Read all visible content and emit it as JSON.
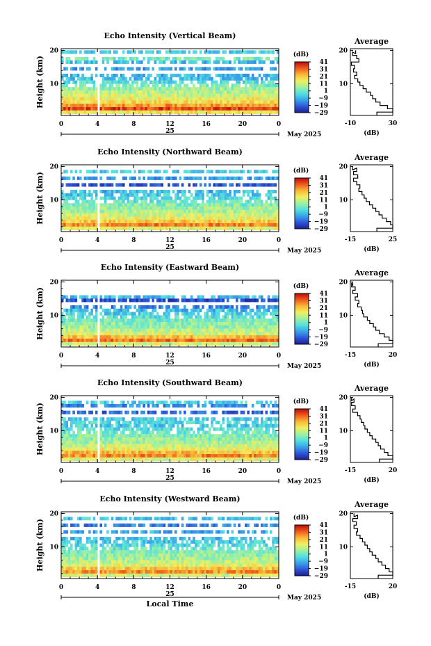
{
  "figure": {
    "colorbar_unit": "(dB)",
    "colorbar_ticks": [
      "41",
      "31",
      "21",
      "11",
      "1",
      "−9",
      "−19",
      "−29"
    ],
    "date_label": "25",
    "month_label": "May 2025",
    "xlabel": "Local Time",
    "avg_title": "Average",
    "avg_xlabel": "(dB)",
    "ylabel": "Height (km)",
    "x_ticks": [
      "0",
      "4",
      "8",
      "12",
      "16",
      "20",
      "0"
    ],
    "y_ticks": [
      "20",
      "10"
    ],
    "colormap": [
      "#1e1e96",
      "#2e56d8",
      "#3aa2e8",
      "#54e0e0",
      "#9ef0a0",
      "#f0f060",
      "#f8b838",
      "#f05a1e",
      "#b80c0c"
    ]
  },
  "chart_data": [
    {
      "type": "heatmap",
      "beam": "vertical",
      "title": "Echo Intensity (Vertical Beam)",
      "xlabel": "",
      "ylabel": "Height (km)",
      "xlim": [
        0,
        24
      ],
      "ylim": [
        0.5,
        20.5
      ],
      "clim": [
        -29,
        41
      ],
      "profile_rows": [
        {
          "h": 19.5,
          "db": -5
        },
        {
          "h": 17.5,
          "db": 2
        },
        {
          "h": 16.5,
          "db": -8
        },
        {
          "h": 14.5,
          "db": -12
        },
        {
          "h": 12.5,
          "db": -9
        },
        {
          "h": 11.5,
          "db": -7
        },
        {
          "h": 10.5,
          "db": -3
        },
        {
          "h": 9.5,
          "db": 2
        },
        {
          "h": 8.5,
          "db": 6
        },
        {
          "h": 7.5,
          "db": 9
        },
        {
          "h": 6.5,
          "db": 11
        },
        {
          "h": 5.5,
          "db": 15
        },
        {
          "h": 4.5,
          "db": 18
        },
        {
          "h": 3.5,
          "db": 26
        },
        {
          "h": 2.5,
          "db": 34
        },
        {
          "h": 1.5,
          "db": 16
        }
      ],
      "average_profile": {
        "xlim": [
          -10,
          30
        ],
        "x_ticks": [
          "-10",
          "30"
        ],
        "points": [
          [
            -5,
            19.5
          ],
          [
            -8,
            19
          ],
          [
            -4,
            18
          ],
          [
            -2,
            17
          ],
          [
            -9,
            16
          ],
          [
            -6,
            15
          ],
          [
            -7,
            14
          ],
          [
            -4,
            13
          ],
          [
            -6,
            12
          ],
          [
            -3,
            11
          ],
          [
            -1,
            10
          ],
          [
            2,
            9
          ],
          [
            5,
            8
          ],
          [
            9,
            7
          ],
          [
            11,
            6
          ],
          [
            14,
            5
          ],
          [
            18,
            4
          ],
          [
            25,
            3
          ],
          [
            30,
            2
          ],
          [
            15,
            1
          ]
        ]
      }
    },
    {
      "type": "heatmap",
      "beam": "northward",
      "title": "Echo Intensity (Northward Beam)",
      "xlabel": "",
      "ylabel": "Height (km)",
      "xlim": [
        0,
        24
      ],
      "ylim": [
        0.5,
        20.5
      ],
      "clim": [
        -29,
        41
      ],
      "profile_rows": [
        {
          "h": 18.5,
          "db": -5
        },
        {
          "h": 16.5,
          "db": -12
        },
        {
          "h": 14.5,
          "db": -20
        },
        {
          "h": 12.5,
          "db": -8
        },
        {
          "h": 11.5,
          "db": -6
        },
        {
          "h": 10.5,
          "db": -4
        },
        {
          "h": 9.5,
          "db": 0
        },
        {
          "h": 8.5,
          "db": 3
        },
        {
          "h": 7.5,
          "db": 6
        },
        {
          "h": 6.5,
          "db": 8
        },
        {
          "h": 5.5,
          "db": 11
        },
        {
          "h": 4.5,
          "db": 14
        },
        {
          "h": 3.5,
          "db": 20
        },
        {
          "h": 2.5,
          "db": 28
        },
        {
          "h": 1.5,
          "db": 14
        }
      ],
      "average_profile": {
        "xlim": [
          -15,
          25
        ],
        "x_ticks": [
          "-15",
          "25"
        ],
        "points": [
          [
            -13,
            19.5
          ],
          [
            -9,
            19
          ],
          [
            -12,
            18
          ],
          [
            -8,
            17
          ],
          [
            -12,
            16
          ],
          [
            -9,
            15
          ],
          [
            -6,
            14
          ],
          [
            -7,
            13
          ],
          [
            -4,
            12
          ],
          [
            -2,
            11
          ],
          [
            0,
            10
          ],
          [
            3,
            9
          ],
          [
            6,
            8
          ],
          [
            9,
            7
          ],
          [
            12,
            6
          ],
          [
            15,
            5
          ],
          [
            19,
            4
          ],
          [
            23,
            3
          ],
          [
            25,
            2
          ],
          [
            10,
            1
          ]
        ]
      }
    },
    {
      "type": "heatmap",
      "beam": "eastward",
      "title": "Echo Intensity (Eastward Beam)",
      "xlabel": "",
      "ylabel": "Height (km)",
      "xlim": [
        0,
        24
      ],
      "ylim": [
        0.5,
        20.5
      ],
      "clim": [
        -29,
        41
      ],
      "profile_rows": [
        {
          "h": 15.5,
          "db": -8
        },
        {
          "h": 14.5,
          "db": -22
        },
        {
          "h": 12.5,
          "db": -15
        },
        {
          "h": 11.5,
          "db": -8
        },
        {
          "h": 10.5,
          "db": -5
        },
        {
          "h": 9.5,
          "db": -2
        },
        {
          "h": 8.5,
          "db": 2
        },
        {
          "h": 7.5,
          "db": 4
        },
        {
          "h": 6.5,
          "db": 6
        },
        {
          "h": 5.5,
          "db": 9
        },
        {
          "h": 4.5,
          "db": 12
        },
        {
          "h": 3.5,
          "db": 22
        },
        {
          "h": 2.5,
          "db": 30
        },
        {
          "h": 1.5,
          "db": 12
        }
      ],
      "average_profile": {
        "xlim": [
          -15,
          20
        ],
        "x_ticks": [
          "-15",
          "20"
        ],
        "points": [
          [
            -13,
            19.5
          ],
          [
            -14,
            19
          ],
          [
            -11,
            18
          ],
          [
            -13,
            17
          ],
          [
            -9,
            16
          ],
          [
            -11,
            15
          ],
          [
            -8,
            14
          ],
          [
            -9,
            13
          ],
          [
            -6,
            12
          ],
          [
            -5,
            11
          ],
          [
            -4,
            10
          ],
          [
            -1,
            9
          ],
          [
            1,
            8
          ],
          [
            4,
            7
          ],
          [
            6,
            6
          ],
          [
            9,
            5
          ],
          [
            13,
            4
          ],
          [
            17,
            3
          ],
          [
            20,
            2
          ],
          [
            8,
            1
          ]
        ]
      }
    },
    {
      "type": "heatmap",
      "beam": "southward",
      "title": "Echo Intensity (Southward Beam)",
      "xlabel": "",
      "ylabel": "Height (km)",
      "xlim": [
        0,
        24
      ],
      "ylim": [
        0.5,
        20.5
      ],
      "clim": [
        -29,
        41
      ],
      "profile_rows": [
        {
          "h": 18.5,
          "db": -5
        },
        {
          "h": 17.5,
          "db": -14
        },
        {
          "h": 15.5,
          "db": -18
        },
        {
          "h": 13.5,
          "db": -6
        },
        {
          "h": 12.5,
          "db": -4
        },
        {
          "h": 11.5,
          "db": -6
        },
        {
          "h": 10.5,
          "db": -2
        },
        {
          "h": 9.5,
          "db": 1
        },
        {
          "h": 8.5,
          "db": 3
        },
        {
          "h": 7.5,
          "db": 5
        },
        {
          "h": 6.5,
          "db": 8
        },
        {
          "h": 5.5,
          "db": 11
        },
        {
          "h": 4.5,
          "db": 14
        },
        {
          "h": 3.5,
          "db": 22
        },
        {
          "h": 2.5,
          "db": 28
        },
        {
          "h": 1.5,
          "db": 13
        }
      ],
      "average_profile": {
        "xlim": [
          -15,
          20
        ],
        "x_ticks": [
          "-15",
          "20"
        ],
        "points": [
          [
            -14,
            19.5
          ],
          [
            -12,
            19
          ],
          [
            -14,
            18
          ],
          [
            -11,
            17
          ],
          [
            -13,
            16
          ],
          [
            -9,
            15
          ],
          [
            -7,
            14
          ],
          [
            -6,
            13
          ],
          [
            -4,
            12
          ],
          [
            -3,
            11
          ],
          [
            -1,
            10
          ],
          [
            1,
            9
          ],
          [
            3,
            8
          ],
          [
            6,
            7
          ],
          [
            8,
            6
          ],
          [
            10,
            5
          ],
          [
            13,
            4
          ],
          [
            16,
            3
          ],
          [
            20,
            2
          ],
          [
            9,
            1
          ]
        ]
      }
    },
    {
      "type": "heatmap",
      "beam": "westward",
      "title": "Echo Intensity (Westward Beam)",
      "xlabel": "Local Time",
      "ylabel": "Height (km)",
      "xlim": [
        0,
        24
      ],
      "ylim": [
        0.5,
        20.5
      ],
      "clim": [
        -29,
        41
      ],
      "profile_rows": [
        {
          "h": 18.5,
          "db": -6
        },
        {
          "h": 16.5,
          "db": -15
        },
        {
          "h": 14.5,
          "db": -10
        },
        {
          "h": 12.5,
          "db": -8
        },
        {
          "h": 11.5,
          "db": -6
        },
        {
          "h": 10.5,
          "db": -3
        },
        {
          "h": 9.5,
          "db": 0
        },
        {
          "h": 8.5,
          "db": 3
        },
        {
          "h": 7.5,
          "db": 5
        },
        {
          "h": 6.5,
          "db": 7
        },
        {
          "h": 5.5,
          "db": 10
        },
        {
          "h": 4.5,
          "db": 13
        },
        {
          "h": 3.5,
          "db": 21
        },
        {
          "h": 2.5,
          "db": 27
        },
        {
          "h": 1.5,
          "db": 12
        }
      ],
      "average_profile": {
        "xlim": [
          -15,
          20
        ],
        "x_ticks": [
          "-15",
          "20"
        ],
        "points": [
          [
            -12,
            19.5
          ],
          [
            -9,
            19
          ],
          [
            -13,
            18
          ],
          [
            -10,
            17
          ],
          [
            -12,
            16
          ],
          [
            -9,
            15
          ],
          [
            -10,
            14
          ],
          [
            -7,
            13
          ],
          [
            -5,
            12
          ],
          [
            -3,
            11
          ],
          [
            -1,
            10
          ],
          [
            1,
            9
          ],
          [
            3,
            8
          ],
          [
            6,
            7
          ],
          [
            8,
            6
          ],
          [
            11,
            5
          ],
          [
            14,
            4
          ],
          [
            17,
            3
          ],
          [
            20,
            2
          ],
          [
            8,
            1
          ]
        ]
      }
    }
  ]
}
